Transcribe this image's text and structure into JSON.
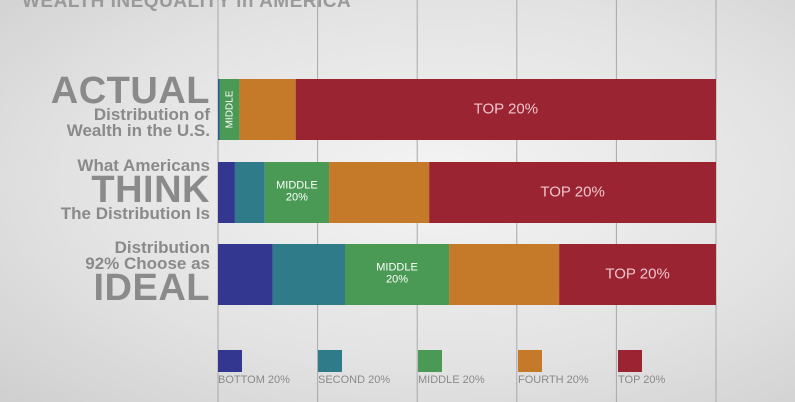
{
  "chart_data": {
    "type": "stacked-bar",
    "title": "WEALTH INEQUALITY in AMERICA",
    "categories": [
      "ACTUAL\nDistribution of\nWealth in the U.S.",
      "What Americans\nTHINK\nThe Distribution Is",
      "Distribution\n92% Choose as\nIDEAL"
    ],
    "series": [
      {
        "name": "BOTTOM 20%",
        "color": "#33378f",
        "values": [
          0.1,
          3.4,
          11.0
        ]
      },
      {
        "name": "SECOND 20%",
        "color": "#2f7b8a",
        "values": [
          0.3,
          6.0,
          14.5
        ]
      },
      {
        "name": "MIDDLE 20%",
        "color": "#4a9a55",
        "values": [
          3.9,
          12.9,
          20.9
        ]
      },
      {
        "name": "FOURTH 20%",
        "color": "#c57a2a",
        "values": [
          11.3,
          20.1,
          22.1
        ]
      },
      {
        "name": "TOP 20%",
        "color": "#9b2433",
        "values": [
          84.4,
          57.6,
          31.5
        ]
      }
    ],
    "annotations": [
      "MIDDLE"
    ],
    "xlim": [
      0,
      100
    ],
    "xticks": [
      0,
      20,
      40,
      60,
      80,
      100
    ],
    "grid": true
  }
}
